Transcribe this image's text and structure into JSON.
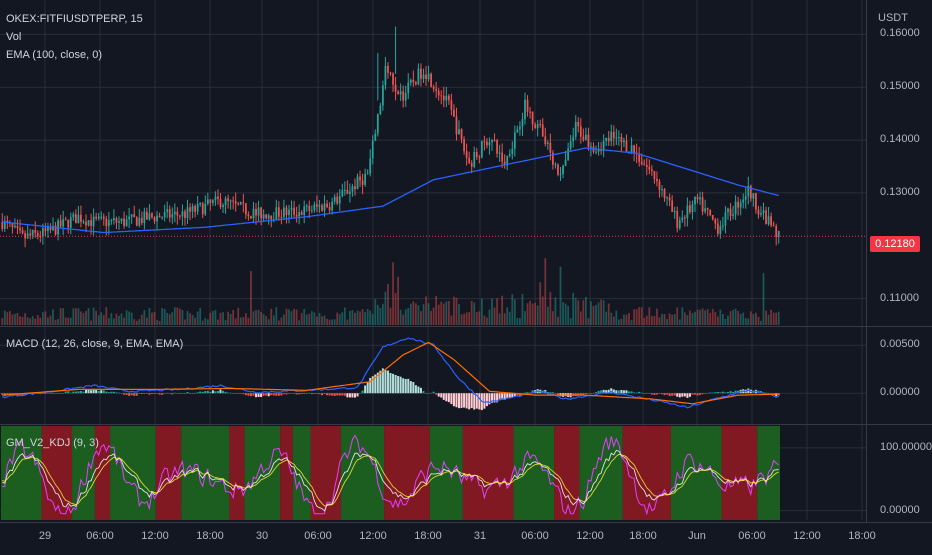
{
  "header": {
    "symbol": "OKEX:FITFIUSDTPERP, 15",
    "indicator_vol": "Vol",
    "indicator_ema": "EMA (100, close, 0)",
    "indicator_macd": "MACD (12, 26, close, 9, EMA, EMA)",
    "indicator_kdj": "GM_V2_KDJ (9, 3)"
  },
  "price_axis": {
    "currency": "USDT",
    "current_price": "0.12180",
    "current_price_color": "#f23645"
  },
  "colors": {
    "up": "#26a69a",
    "down": "#ef5350",
    "ema": "#2962ff",
    "macd_line": "#2962ff",
    "signal_line": "#ff6d00",
    "kdj_bg_green": "#1b5e20",
    "kdj_bg_red": "#801922"
  },
  "chart_data": [
    {
      "type": "candlestick",
      "name": "price",
      "ylim": [
        0.105,
        0.165
      ],
      "y_ticks": [
        "0.16000",
        "0.15000",
        "0.14000",
        "0.13000",
        "0.11000"
      ],
      "x_ticks": [
        "29",
        "06:00",
        "12:00",
        "18:00",
        "30",
        "06:00",
        "12:00",
        "18:00",
        "31",
        "06:00",
        "12:00",
        "18:00",
        "Jun",
        "06:00",
        "12:00",
        "18:00"
      ],
      "close_keyframes": [
        [
          0,
          0.1245
        ],
        [
          8,
          0.1215
        ],
        [
          18,
          0.1225
        ],
        [
          30,
          0.1255
        ],
        [
          36,
          0.1245
        ],
        [
          48,
          0.1245
        ],
        [
          60,
          0.1255
        ],
        [
          72,
          0.126
        ],
        [
          86,
          0.1285
        ],
        [
          100,
          0.126
        ],
        [
          118,
          0.1265
        ],
        [
          130,
          0.128
        ],
        [
          144,
          0.1335
        ],
        [
          148,
          0.144
        ],
        [
          151,
          0.153
        ],
        [
          158,
          0.1485
        ],
        [
          166,
          0.1535
        ],
        [
          176,
          0.1465
        ],
        [
          184,
          0.1355
        ],
        [
          192,
          0.1405
        ],
        [
          198,
          0.1355
        ],
        [
          206,
          0.1465
        ],
        [
          214,
          0.1405
        ],
        [
          220,
          0.1325
        ],
        [
          226,
          0.1425
        ],
        [
          234,
          0.1385
        ],
        [
          240,
          0.1405
        ],
        [
          248,
          0.1385
        ],
        [
          258,
          0.1325
        ],
        [
          266,
          0.1245
        ],
        [
          274,
          0.1285
        ],
        [
          282,
          0.1235
        ],
        [
          294,
          0.1305
        ],
        [
          300,
          0.1255
        ],
        [
          306,
          0.1218
        ]
      ],
      "volume_spike_indices": [
        98,
        152,
        154,
        156,
        212,
        214,
        220,
        300
      ]
    },
    {
      "type": "line",
      "name": "EMA (100, close, 0)",
      "keyframes": [
        [
          0,
          0.1245
        ],
        [
          40,
          0.1225
        ],
        [
          80,
          0.1235
        ],
        [
          120,
          0.1255
        ],
        [
          150,
          0.1275
        ],
        [
          170,
          0.1325
        ],
        [
          190,
          0.1345
        ],
        [
          210,
          0.1365
        ],
        [
          230,
          0.1385
        ],
        [
          250,
          0.1375
        ],
        [
          270,
          0.1345
        ],
        [
          290,
          0.1315
        ],
        [
          306,
          0.1295
        ]
      ]
    },
    {
      "type": "line",
      "name": "MACD (12, 26, close, 9, EMA, EMA)",
      "ylim": [
        -0.003,
        0.0068
      ],
      "y_ticks": [
        "0.00500",
        "0.00000"
      ],
      "macd_keyframes": [
        [
          0,
          -0.0004
        ],
        [
          20,
          0.0002
        ],
        [
          36,
          0.0008
        ],
        [
          50,
          0.0002
        ],
        [
          70,
          0.0004
        ],
        [
          86,
          0.0008
        ],
        [
          100,
          0.0001
        ],
        [
          120,
          0.0003
        ],
        [
          140,
          0.0006
        ],
        [
          150,
          0.0048
        ],
        [
          160,
          0.0058
        ],
        [
          170,
          0.005
        ],
        [
          180,
          0.0015
        ],
        [
          190,
          -0.001
        ],
        [
          200,
          -0.0005
        ],
        [
          212,
          0.0002
        ],
        [
          222,
          -0.0006
        ],
        [
          240,
          0.0001
        ],
        [
          262,
          -0.001
        ],
        [
          270,
          -0.0015
        ],
        [
          282,
          -0.0005
        ],
        [
          294,
          0.0003
        ],
        [
          306,
          -0.0004
        ]
      ],
      "signal_keyframes": [
        [
          0,
          -0.0002
        ],
        [
          30,
          0.0004
        ],
        [
          60,
          0.0004
        ],
        [
          90,
          0.0005
        ],
        [
          120,
          0.0003
        ],
        [
          145,
          0.0012
        ],
        [
          158,
          0.004
        ],
        [
          168,
          0.0053
        ],
        [
          178,
          0.0035
        ],
        [
          192,
          0.0002
        ],
        [
          210,
          -0.0002
        ],
        [
          230,
          -0.0002
        ],
        [
          256,
          -0.0006
        ],
        [
          272,
          -0.0011
        ],
        [
          290,
          -0.0002
        ],
        [
          306,
          -0.0001
        ]
      ]
    },
    {
      "type": "line",
      "name": "GM_V2_KDJ (9, 3)",
      "ylim": [
        -15,
        135
      ],
      "y_ticks": [
        "100.00000",
        "0.00000"
      ],
      "background": "alternating green/red bands"
    }
  ]
}
